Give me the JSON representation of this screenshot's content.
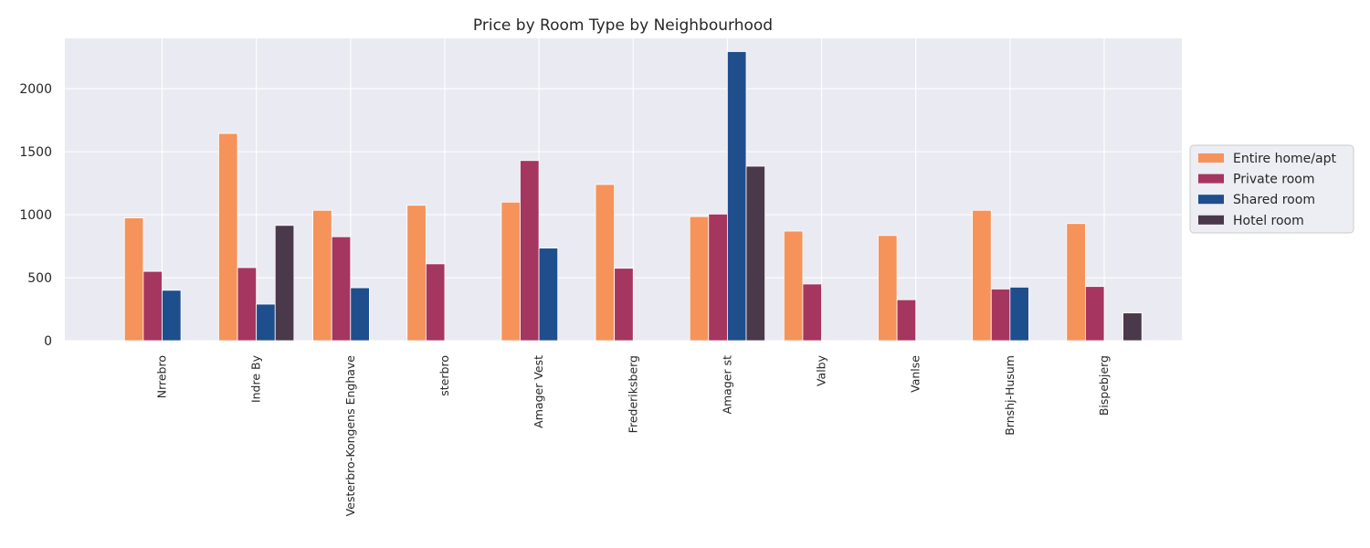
{
  "chart_data": {
    "type": "bar",
    "title": "Price by Room Type by Neighbourhood",
    "xlabel": "",
    "ylabel": "",
    "ylim": [
      0,
      2400
    ],
    "yticks": [
      0,
      500,
      1000,
      1500,
      2000
    ],
    "grid": true,
    "legend_position": "right",
    "categories": [
      "Nrrebro",
      "Indre By",
      "Vesterbro-Kongens Enghave",
      "sterbro",
      "Amager Vest",
      "Frederiksberg",
      "Amager st",
      "Valby",
      "Vanlse",
      "Brnshj-Husum",
      "Bispebjerg"
    ],
    "series": [
      {
        "name": "Entire home/apt",
        "color": "#f5935a",
        "values": [
          975,
          1645,
          1035,
          1075,
          1100,
          1240,
          985,
          870,
          835,
          1035,
          930
        ]
      },
      {
        "name": "Private room",
        "color": "#a5365f",
        "values": [
          550,
          580,
          825,
          610,
          1430,
          575,
          1005,
          450,
          325,
          410,
          430
        ]
      },
      {
        "name": "Shared room",
        "color": "#1f4e8c",
        "values": [
          400,
          290,
          420,
          null,
          735,
          null,
          2295,
          null,
          null,
          425,
          null
        ]
      },
      {
        "name": "Hotel room",
        "color": "#4a384b",
        "values": [
          null,
          915,
          null,
          null,
          null,
          null,
          1385,
          null,
          null,
          null,
          220
        ]
      }
    ]
  }
}
